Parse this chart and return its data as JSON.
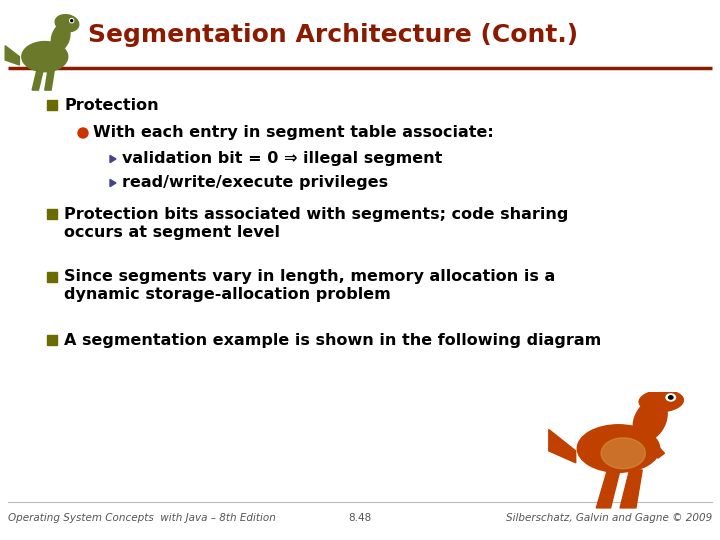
{
  "title": "Segmentation Architecture (Cont.)",
  "title_color": "#8B1A00",
  "title_fontsize": 18,
  "bg_color": "#FFFFFF",
  "header_line_color": "#8B1A00",
  "bullet_color": "#6B6B00",
  "subbullet_color": "#CC3300",
  "arrow_color": "#555577",
  "text_color": "#000000",
  "footer_left": "Operating System Concepts  with Java – 8th Edition",
  "footer_center": "8.48",
  "footer_right": "Silberschatz, Galvin and Gagne © 2009",
  "footer_fontsize": 7.5,
  "bullet1": "Protection",
  "sub_bullet1": "With each entry in segment table associate:",
  "sub_sub_bullet1": "validation bit = 0 ⇒ illegal segment",
  "sub_sub_bullet2": "read/write/execute privileges",
  "bullet2_line1": "Protection bits associated with segments; code sharing",
  "bullet2_line2": "occurs at segment level",
  "bullet3_line1": "Since segments vary in length, memory allocation is a",
  "bullet3_line2": "dynamic storage-allocation problem",
  "bullet4": "A segmentation example is shown in the following diagram",
  "content_fontsize": 11.5
}
